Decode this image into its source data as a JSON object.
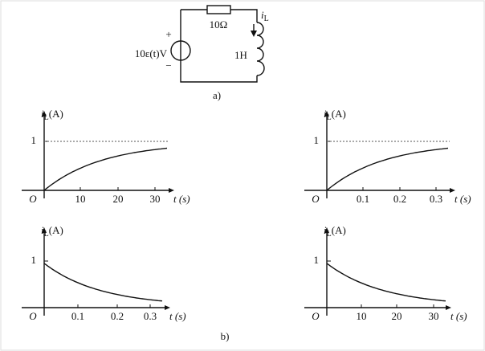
{
  "circuit": {
    "source": "10ε(t)V",
    "plus": "+",
    "minus": "−",
    "resistor": "10Ω",
    "inductor": "1H",
    "current": {
      "symbol": "i",
      "subscript": "L"
    },
    "caption": "a)"
  },
  "graphs": [
    {
      "ylabel": {
        "symbol": "i",
        "subscript": "L",
        "unit": "(A)"
      },
      "ytick": "1",
      "origin": "O",
      "xticks": [
        "10",
        "20",
        "30"
      ],
      "xlabel": "t (s)"
    },
    {
      "ylabel": {
        "symbol": "i",
        "subscript": "L",
        "unit": "(A)"
      },
      "ytick": "1",
      "origin": "O",
      "xticks": [
        "0.1",
        "0.2",
        "0.3"
      ],
      "xlabel": "t (s)"
    },
    {
      "ylabel": {
        "symbol": "i",
        "subscript": "L",
        "unit": "(A)"
      },
      "ytick": "1",
      "origin": "O",
      "xticks": [
        "0.1",
        "0.2",
        "0.3"
      ],
      "xlabel": "t (s)"
    },
    {
      "ylabel": {
        "symbol": "i",
        "subscript": "L",
        "unit": "(A)"
      },
      "ytick": "1",
      "origin": "O",
      "xticks": [
        "10",
        "20",
        "30"
      ],
      "xlabel": "t (s)"
    }
  ],
  "caption": "b)"
}
